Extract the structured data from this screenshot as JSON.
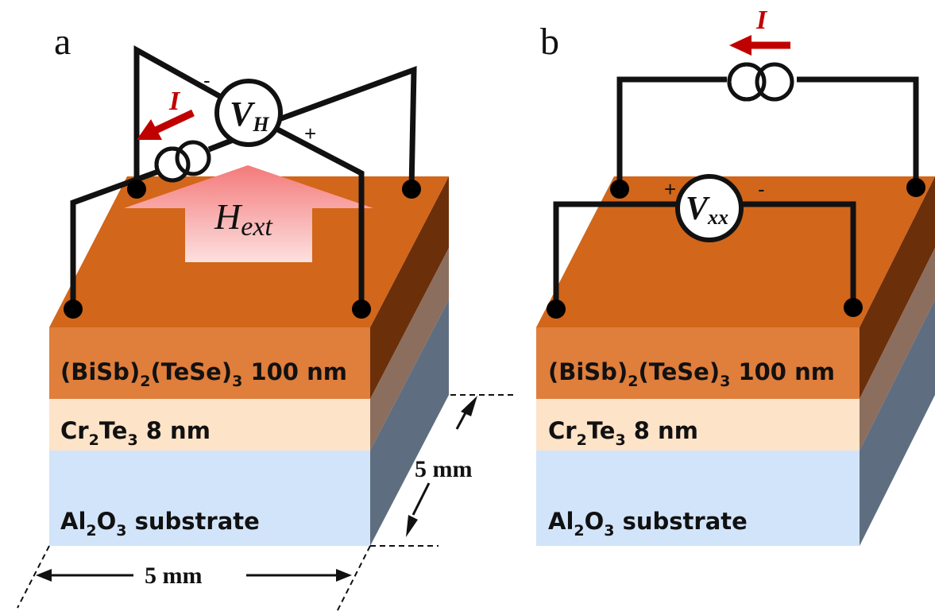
{
  "colors": {
    "top_face": "#D2661A",
    "layer_top": "#E07E3C",
    "layer_mid": "#FDE3C8",
    "layer_bottom": "#D2E4FA",
    "side_top": "#6B2F0A",
    "side_mid": "#8C6E5E",
    "side_bottom": "#5E6E80",
    "arrow_red": "#C00000",
    "field_arrow": "#F58C8C"
  },
  "panels": [
    {
      "letter": "a",
      "layers": [
        {
          "name": "(BiSb)",
          "sub1": "2",
          "mid": "(TeSe)",
          "sub2": "3",
          "tail": " 100 nm"
        },
        {
          "name": "Cr",
          "sub1": "2",
          "mid": "Te",
          "sub2": "3",
          "tail": " 8 nm"
        },
        {
          "name": "Al",
          "sub1": "2",
          "mid": "O",
          "sub2": "3",
          "tail": " substrate"
        }
      ],
      "meter": {
        "main": "V",
        "sub": "H",
        "minus": "-",
        "plus": "+"
      },
      "current_label": "I",
      "field": {
        "main": "H",
        "sub": "ext"
      },
      "dim_depth": "5 mm",
      "dim_width": "5 mm"
    },
    {
      "letter": "b",
      "layers": [
        {
          "name": "(BiSb)",
          "sub1": "2",
          "mid": "(TeSe)",
          "sub2": "3",
          "tail": " 100 nm"
        },
        {
          "name": "Cr",
          "sub1": "2",
          "mid": "Te",
          "sub2": "3",
          "tail": " 8 nm"
        },
        {
          "name": "Al",
          "sub1": "2",
          "mid": "O",
          "sub2": "3",
          "tail": " substrate"
        }
      ],
      "meter": {
        "main": "V",
        "sub": "xx",
        "minus": "-",
        "plus": "+"
      },
      "current_label": "I"
    }
  ]
}
